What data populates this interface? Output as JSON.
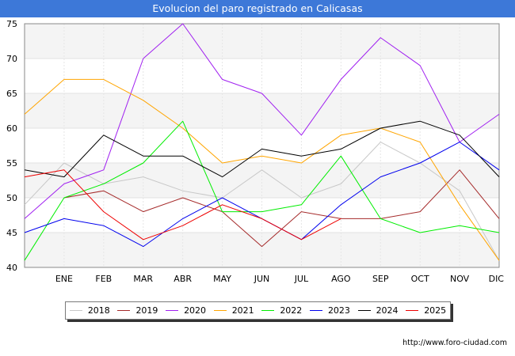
{
  "chart_data": {
    "type": "line",
    "title": "Evolucion del paro registrado en Calicasas",
    "xlabel": "",
    "ylabel": "",
    "categories": [
      "",
      "ENE",
      "FEB",
      "MAR",
      "ABR",
      "MAY",
      "JUN",
      "JUL",
      "AGO",
      "SEP",
      "OCT",
      "NOV",
      "DIC"
    ],
    "ylim": [
      40,
      75
    ],
    "yticks": [
      40,
      45,
      50,
      55,
      60,
      65,
      70,
      75
    ],
    "grid": true,
    "legend_position": "bottom",
    "series": [
      {
        "name": "2018",
        "color": "#c8c8c8",
        "values": [
          49,
          55,
          52,
          53,
          51,
          50,
          54,
          50,
          52,
          58,
          55,
          51,
          41
        ]
      },
      {
        "name": "2019",
        "color": "#a52a2a",
        "values": [
          null,
          50,
          51,
          48,
          50,
          48,
          43,
          48,
          47,
          47,
          48,
          54,
          47
        ]
      },
      {
        "name": "2020",
        "color": "#a020f0",
        "values": [
          47,
          52,
          54,
          70,
          75,
          67,
          65,
          59,
          67,
          73,
          69,
          58,
          62
        ]
      },
      {
        "name": "2021",
        "color": "#ffa500",
        "values": [
          62,
          67,
          67,
          64,
          60,
          55,
          56,
          55,
          59,
          60,
          58,
          49,
          41
        ]
      },
      {
        "name": "2022",
        "color": "#00ee00",
        "values": [
          41,
          50,
          52,
          55,
          61,
          48,
          48,
          49,
          56,
          47,
          45,
          46,
          45
        ]
      },
      {
        "name": "2023",
        "color": "#0000ee",
        "values": [
          45,
          47,
          46,
          43,
          47,
          50,
          47,
          44,
          49,
          53,
          55,
          58,
          54
        ]
      },
      {
        "name": "2024",
        "color": "#000000",
        "values": [
          54,
          53,
          59,
          56,
          56,
          53,
          57,
          56,
          57,
          60,
          61,
          59,
          53
        ]
      },
      {
        "name": "2025",
        "color": "#ee0000",
        "values": [
          53,
          54,
          48,
          44,
          46,
          49,
          47,
          44,
          47,
          null,
          null,
          null,
          null
        ]
      }
    ]
  },
  "source": "http://www.foro-ciudad.com"
}
